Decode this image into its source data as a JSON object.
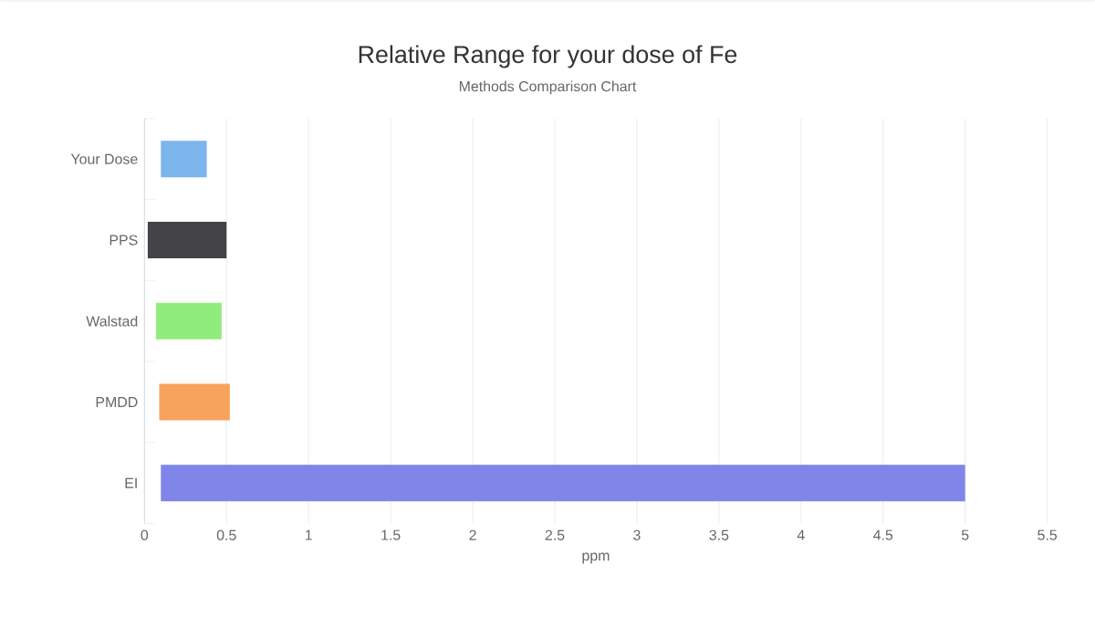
{
  "chart_data": {
    "type": "bar",
    "orientation": "horizontal",
    "title": "Relative Range for your dose of Fe",
    "subtitle": "Methods Comparison Chart",
    "xlabel": "ppm",
    "categories": [
      "Your Dose",
      "PPS",
      "Walstad",
      "PMDD",
      "EI"
    ],
    "base": [
      0.1,
      0.02,
      0.07,
      0.09,
      0.1
    ],
    "values": [
      0.28,
      0.48,
      0.4,
      0.43,
      4.9
    ],
    "colors": [
      "#7cb5ec",
      "#434348",
      "#90ed7d",
      "#f7a35c",
      "#8085e9"
    ],
    "xlim": [
      0,
      5.5
    ],
    "xticks": [
      0,
      0.5,
      1,
      1.5,
      2,
      2.5,
      3,
      3.5,
      4,
      4.5,
      5,
      5.5
    ],
    "grid": "x"
  }
}
